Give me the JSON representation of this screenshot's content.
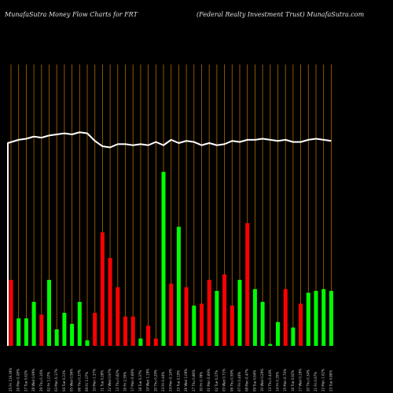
{
  "header": {
    "left_title": "MunafaSutra  Money Flow  Charts for FRT",
    "right_title": "(Federal Realty Investment Trust) MunafaSutra.com"
  },
  "colors": {
    "background": "#000000",
    "up": "#00ff00",
    "down": "#ff0000",
    "grid": "#b06a00",
    "line": "#ffffff",
    "text": "#e0e0e0"
  },
  "chart_data": {
    "type": "bar",
    "title": "",
    "xlabel": "",
    "ylabel": "",
    "grid": true,
    "bar_scale_note": "relative money flow heights, 0-100",
    "categories": [
      "25 Fri 119.39%",
      "26 Mon 0.08%",
      "27 Tue 0.62%",
      "28 Wed 0.99%",
      "29 Thu 0.16%",
      "02 Fri 1.07%",
      "03 Mon 0.17%",
      "04 Tue 0.31%",
      "05 Wed 0.96%",
      "06 Thu 0.37%",
      "09 Fri 1.07%",
      "10 Mon 1.37%",
      "11 Tue 0.28%",
      "12 Wed 0.97%",
      "13 Thu 0.82%",
      "16 Fri 2.55%",
      "17 Mon 0.68%",
      "18 Tue 0.37%",
      "19 Wed 1.18%",
      "20 Thu 0.29%",
      "23 Fri 0.44%",
      "24 Mon 0.14%",
      "25 Tue 0.19%",
      "26 Wed 1.09%",
      "27 Thu 0.86%",
      "30 Fri 0.78%",
      "01 Mon 0.69%",
      "02 Tue 0.37%",
      "03 Wed 0.71%",
      "06 Thu 0.59%",
      "07 Fri 0.44%",
      "08 Mon 0.47%",
      "09 Tue 0.64%",
      "10 Wed 0.29%",
      "13 Thu 0.44%",
      "14 Fri 0.35%",
      "15 Mon 0.74%",
      "16 Tue 0.92%",
      "17 Wed 0.18%",
      "20 Thu 0.34%",
      "21 Fri 0.67%",
      "22 Mon 1.02%",
      "23 Tue 0.86%"
    ],
    "values": [
      36,
      15,
      15,
      24,
      17,
      36,
      9,
      18,
      12,
      24,
      3,
      18,
      62,
      48,
      32,
      16,
      16,
      4,
      11,
      4,
      95,
      34,
      65,
      32,
      22,
      23,
      36,
      30,
      39,
      22,
      36,
      67,
      31,
      24,
      1,
      13,
      31,
      10,
      23,
      29,
      30,
      31,
      30
    ],
    "flow": [
      "down",
      "up",
      "up",
      "up",
      "down",
      "up",
      "up",
      "up",
      "up",
      "up",
      "up",
      "down",
      "down",
      "down",
      "down",
      "down",
      "down",
      "up",
      "down",
      "down",
      "up",
      "down",
      "up",
      "down",
      "up",
      "down",
      "down",
      "up",
      "down",
      "down",
      "up",
      "down",
      "up",
      "up",
      "up",
      "up",
      "down",
      "up",
      "down",
      "up",
      "up",
      "up",
      "up"
    ],
    "price_line": [
      72,
      73.5,
      74,
      75,
      74.5,
      75.5,
      76,
      76.5,
      76,
      77,
      76.5,
      73,
      70.5,
      70,
      71.5,
      71.5,
      71,
      71.5,
      71,
      72.5,
      71,
      73.5,
      72,
      73,
      72.5,
      71,
      72,
      71,
      71.5,
      73,
      72.5,
      73.5,
      73.5,
      74,
      73.5,
      73,
      73.5,
      72.5,
      72.5,
      73.5,
      74,
      73.5,
      73
    ],
    "ylim": [
      0,
      100
    ]
  }
}
